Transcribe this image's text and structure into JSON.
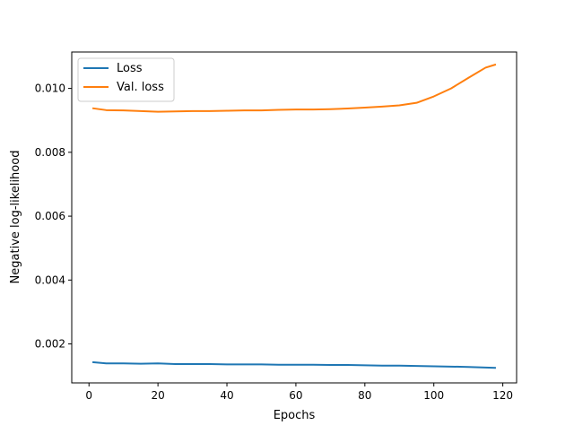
{
  "chart_data": {
    "type": "line",
    "title": "",
    "xlabel": "Epochs",
    "ylabel": "Negative log-likelihood",
    "xlim": [
      -5.0,
      124.0
    ],
    "ylim": [
      0.00078,
      0.01114
    ],
    "xticks": [
      0,
      20,
      40,
      60,
      80,
      100,
      120
    ],
    "xtick_labels": [
      "0",
      "20",
      "40",
      "60",
      "80",
      "100",
      "120"
    ],
    "yticks": [
      0.002,
      0.004,
      0.006,
      0.008,
      0.01
    ],
    "ytick_labels": [
      "0.002",
      "0.004",
      "0.006",
      "0.008",
      "0.010"
    ],
    "grid": false,
    "legend_position": "top-left",
    "x": [
      1,
      5,
      10,
      15,
      20,
      25,
      30,
      35,
      40,
      45,
      50,
      55,
      60,
      65,
      70,
      75,
      80,
      85,
      90,
      95,
      100,
      105,
      110,
      115,
      118
    ],
    "series": [
      {
        "name": "Loss",
        "color": "#1f77b4",
        "values": [
          0.00143,
          0.00139,
          0.00139,
          0.00138,
          0.00139,
          0.00137,
          0.00137,
          0.00137,
          0.00136,
          0.00136,
          0.00136,
          0.00135,
          0.00135,
          0.00135,
          0.00134,
          0.00134,
          0.00133,
          0.00132,
          0.00132,
          0.00131,
          0.0013,
          0.00129,
          0.00128,
          0.00126,
          0.00125
        ]
      },
      {
        "name": "Val. loss",
        "color": "#ff7f0e",
        "values": [
          0.00938,
          0.00932,
          0.00931,
          0.00929,
          0.00927,
          0.00928,
          0.00929,
          0.00929,
          0.0093,
          0.00931,
          0.00931,
          0.00933,
          0.00934,
          0.00934,
          0.00935,
          0.00937,
          0.0094,
          0.00943,
          0.00947,
          0.00955,
          0.00975,
          0.01,
          0.01033,
          0.01065,
          0.01075
        ]
      }
    ]
  }
}
